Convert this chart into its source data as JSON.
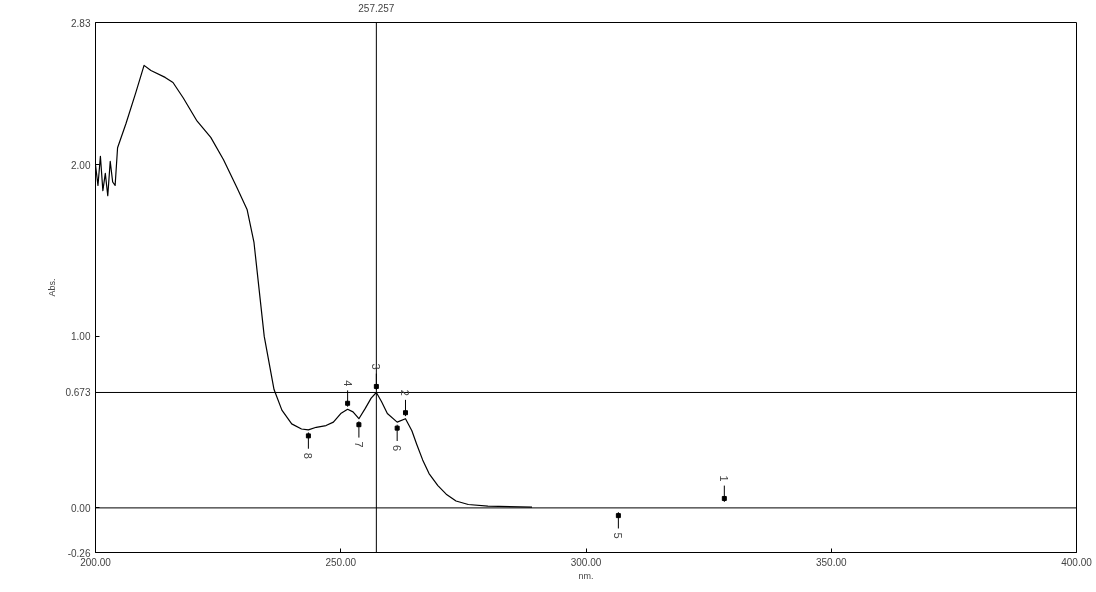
{
  "chart_data": {
    "type": "line",
    "xlabel": "nm.",
    "ylabel": "Abs.",
    "x": [
      200,
      200.5,
      201,
      201.5,
      202,
      202.5,
      203,
      203.5,
      204,
      204.5,
      206.2,
      208.2,
      209.9,
      211.3,
      214.2,
      215.8,
      217.9,
      220.6,
      223.5,
      226.1,
      228.8,
      230.9,
      232.3,
      234.4,
      236.4,
      238,
      240,
      242,
      243.4,
      245,
      247,
      248.5,
      250,
      251.4,
      252.5,
      253.7,
      255,
      256.2,
      257.257,
      258.3,
      259.5,
      261.5,
      263.2,
      264.5,
      265.5,
      266.7,
      268,
      269.8,
      271.5,
      273.5,
      276,
      280,
      289
    ],
    "series": [
      {
        "color": "#000000",
        "values": [
          2.0,
          1.88,
          2.05,
          1.85,
          1.95,
          1.82,
          2.02,
          1.9,
          1.88,
          2.1,
          2.24,
          2.42,
          2.58,
          2.55,
          2.51,
          2.48,
          2.39,
          2.26,
          2.16,
          2.03,
          1.87,
          1.74,
          1.55,
          1.0,
          0.69,
          0.57,
          0.49,
          0.46,
          0.455,
          0.47,
          0.48,
          0.5,
          0.55,
          0.575,
          0.56,
          0.52,
          0.58,
          0.64,
          0.673,
          0.62,
          0.55,
          0.5,
          0.52,
          0.45,
          0.37,
          0.28,
          0.2,
          0.13,
          0.08,
          0.04,
          0.02,
          0.01,
          0.005
        ]
      }
    ],
    "xlim": [
      200,
      400
    ],
    "ylim": [
      -0.26,
      2.83
    ],
    "xticks": [
      {
        "value": 200,
        "label": "200.00"
      },
      {
        "value": 250,
        "label": "250.00"
      },
      {
        "value": 300,
        "label": "300.00"
      },
      {
        "value": 350,
        "label": "350.00"
      },
      {
        "value": 400,
        "label": "400.00"
      }
    ],
    "yticks": [
      {
        "value": -0.26,
        "label": "-0.26"
      },
      {
        "value": 0,
        "label": "0.00"
      },
      {
        "value": 1,
        "label": "1.00"
      },
      {
        "value": 2,
        "label": "2.00"
      },
      2.83
    ],
    "ref_lines": [
      {
        "axis": "x",
        "value": 257.257,
        "label": "257.257",
        "color": "#000000"
      },
      {
        "axis": "y",
        "value": 0.673,
        "label": "0.673",
        "color": "#000000"
      },
      {
        "axis": "y",
        "value": 0,
        "label": null,
        "color": "#000000"
      }
    ],
    "annotations": [
      {
        "text": "1",
        "x": 328.2,
        "y": 0.02
      },
      {
        "text": "2",
        "x": 263.2,
        "y": 0.52
      },
      {
        "text": "3",
        "x": 257.257,
        "y": 0.673
      },
      {
        "text": "4",
        "x": 251.4,
        "y": 0.575
      },
      {
        "text": "5",
        "x": 306.6,
        "y": -0.01
      },
      {
        "text": "6",
        "x": 261.5,
        "y": 0.5
      },
      {
        "text": "7",
        "x": 253.7,
        "y": 0.52
      },
      {
        "text": "8",
        "x": 243.4,
        "y": 0.455
      }
    ],
    "grid": false,
    "line_style": "solid"
  }
}
